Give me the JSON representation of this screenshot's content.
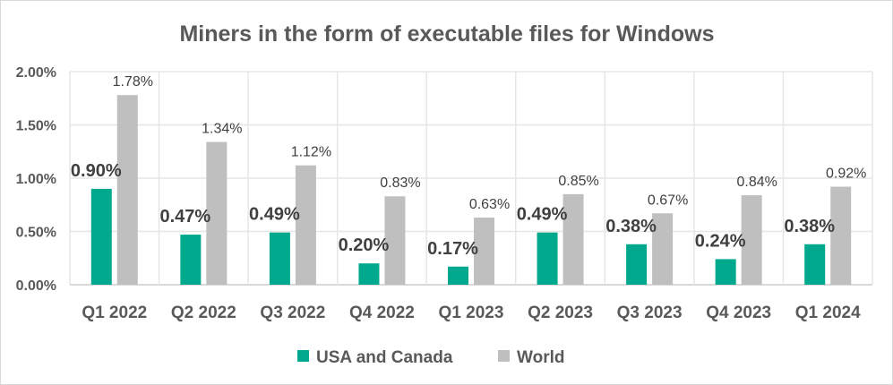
{
  "chart_data": {
    "type": "bar",
    "title": "Miners in the form of executable files for Windows",
    "xlabel": "",
    "ylabel": "",
    "ylim": [
      0,
      2.0
    ],
    "yticks": [
      0,
      0.5,
      1.0,
      1.5,
      2.0
    ],
    "ytick_labels": [
      "0.00%",
      "0.50%",
      "1.00%",
      "1.50%",
      "2.00%"
    ],
    "grid": true,
    "legend_position": "bottom",
    "categories": [
      "Q1 2022",
      "Q2 2022",
      "Q3 2022",
      "Q4 2022",
      "Q1 2023",
      "Q2 2023",
      "Q3 2023",
      "Q4 2023",
      "Q1 2024"
    ],
    "series": [
      {
        "name": "USA and Canada",
        "color": "#00A88E",
        "values": [
          0.9,
          0.47,
          0.49,
          0.2,
          0.17,
          0.49,
          0.38,
          0.24,
          0.38
        ],
        "labels": [
          "0.90%",
          "0.47%",
          "0.49%",
          "0.20%",
          "0.17%",
          "0.49%",
          "0.38%",
          "0.24%",
          "0.38%"
        ]
      },
      {
        "name": "World",
        "color": "#BFBFBF",
        "values": [
          1.78,
          1.34,
          1.12,
          0.83,
          0.63,
          0.85,
          0.67,
          0.84,
          0.92
        ],
        "labels": [
          "1.78%",
          "1.34%",
          "1.12%",
          "0.83%",
          "0.63%",
          "0.85%",
          "0.67%",
          "0.84%",
          "0.92%"
        ]
      }
    ]
  }
}
